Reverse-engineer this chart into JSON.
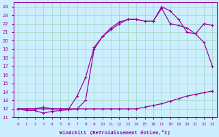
{
  "xlabel": "Windchill (Refroidissement éolien,°C)",
  "ylabel": "",
  "bg_color": "#cceeff",
  "line_color": "#990099",
  "grid_color": "#aaddcc",
  "xlim": [
    -0.5,
    23.5
  ],
  "ylim": [
    11,
    24.5
  ],
  "xticks": [
    0,
    1,
    2,
    3,
    4,
    5,
    6,
    7,
    8,
    9,
    10,
    11,
    12,
    13,
    14,
    15,
    16,
    17,
    18,
    19,
    20,
    21,
    22,
    23
  ],
  "yticks": [
    11,
    12,
    13,
    14,
    15,
    16,
    17,
    18,
    19,
    20,
    21,
    22,
    23,
    24
  ],
  "series1_x": [
    0,
    1,
    2,
    3,
    4,
    5,
    6,
    7,
    8,
    9,
    10,
    11,
    12,
    13,
    14,
    15,
    16,
    17,
    18,
    19,
    20,
    21,
    22,
    23
  ],
  "series1_y": [
    12,
    11.8,
    11.8,
    11.5,
    11.7,
    11.8,
    11.9,
    12,
    12,
    12,
    12,
    12,
    12,
    12,
    12,
    12.2,
    12.4,
    12.6,
    12.9,
    13.2,
    13.5,
    13.7,
    13.9,
    14.1
  ],
  "series2_x": [
    0,
    1,
    2,
    3,
    4,
    5,
    6,
    7,
    8,
    9,
    10,
    11,
    12,
    13,
    14,
    15,
    16,
    17,
    18,
    19,
    20,
    21,
    22,
    23
  ],
  "series2_y": [
    12,
    12,
    12,
    12.2,
    12,
    12,
    12,
    13.5,
    15.7,
    19.2,
    20.5,
    21.5,
    22.2,
    22.5,
    22.5,
    22.3,
    22.3,
    24,
    23.5,
    22.5,
    21.0,
    20.8,
    19.8,
    17.0
  ],
  "series3_x": [
    0,
    1,
    2,
    3,
    4,
    5,
    6,
    7,
    8,
    9,
    10,
    11,
    12,
    13,
    14,
    15,
    16,
    17,
    18,
    19,
    20,
    21,
    22,
    23
  ],
  "series3_y": [
    12,
    12,
    12,
    12,
    12,
    12,
    12,
    12,
    13,
    19,
    20.5,
    21.3,
    22.0,
    22.5,
    22.5,
    22.3,
    22.3,
    23.8,
    22.0,
    21.8,
    21.5,
    20.8,
    22.0,
    21.8
  ]
}
